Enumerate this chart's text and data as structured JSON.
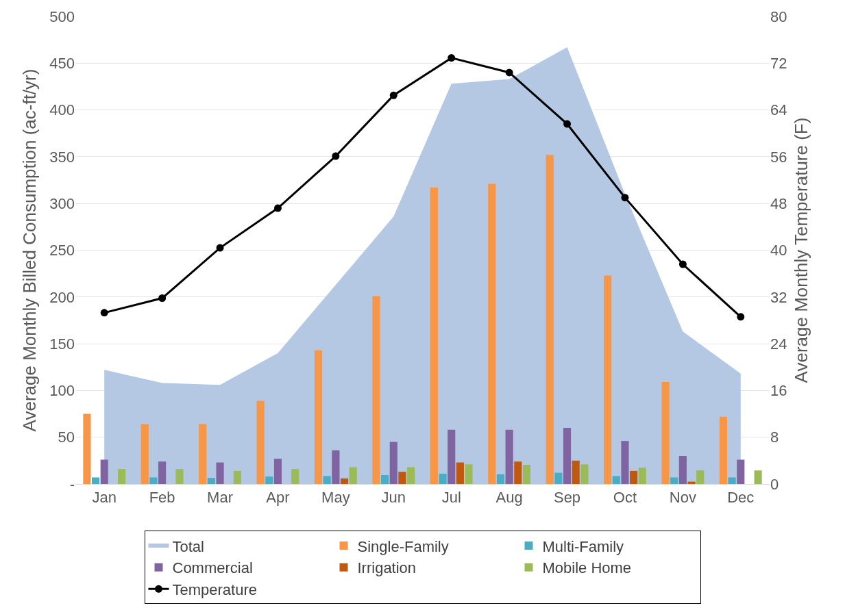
{
  "chart_data": {
    "type": "bar",
    "categories": [
      "Jan",
      "Feb",
      "Mar",
      "Apr",
      "May",
      "Jun",
      "Jul",
      "Aug",
      "Sep",
      "Oct",
      "Nov",
      "Dec"
    ],
    "ylabel": "Average Monthly Billed Consumption (ac-ft/yr)",
    "y2label": "Average Monthly Temperature (F)",
    "ylim": [
      0,
      500
    ],
    "yticks": [
      {
        "value": 0,
        "label": "-"
      },
      50,
      100,
      150,
      200,
      250,
      300,
      350,
      400,
      450,
      500
    ],
    "y2lim": [
      0,
      80
    ],
    "y2ticks": [
      0,
      8,
      16,
      24,
      32,
      40,
      48,
      56,
      64,
      72,
      80
    ],
    "grid": "y",
    "legend": "bottom",
    "series": [
      {
        "name": "Total",
        "type": "area",
        "color": "#b4c8e3",
        "values": [
          122,
          108,
          106,
          140,
          213,
          286,
          428,
          433,
          467,
          310,
          163,
          118
        ]
      },
      {
        "name": "Single-Family",
        "color": "#f79646",
        "values": [
          75,
          64,
          64,
          89,
          143,
          201,
          317,
          321,
          352,
          223,
          109,
          72
        ]
      },
      {
        "name": "Multi-Family",
        "color": "#4bacc6",
        "values": [
          7,
          7,
          6.5,
          8,
          8.5,
          9.5,
          11,
          10.5,
          12,
          8.5,
          7,
          7
        ]
      },
      {
        "name": "Commercial",
        "color": "#8064a2",
        "values": [
          26,
          24,
          23,
          27,
          36,
          45,
          58,
          58,
          60,
          46,
          30,
          26
        ]
      },
      {
        "name": "Irrigation",
        "color": "#c0580f",
        "values": [
          null,
          null,
          null,
          null,
          6,
          13,
          23,
          24,
          25,
          14,
          2.5,
          null
        ]
      },
      {
        "name": "Mobile Home",
        "color": "#9bbb59",
        "values": [
          16,
          16,
          14,
          16,
          18,
          18,
          21,
          20.5,
          21,
          17.5,
          14.5,
          14.5
        ]
      },
      {
        "name": "Temperature",
        "type": "line",
        "axis": "y2",
        "color": "#000000",
        "marker": "circle",
        "line_style": "solid",
        "values": [
          29.3,
          31.8,
          40.4,
          47.2,
          56.1,
          66.5,
          72.9,
          70.4,
          61.6,
          49,
          37.6,
          28.6
        ]
      }
    ]
  }
}
